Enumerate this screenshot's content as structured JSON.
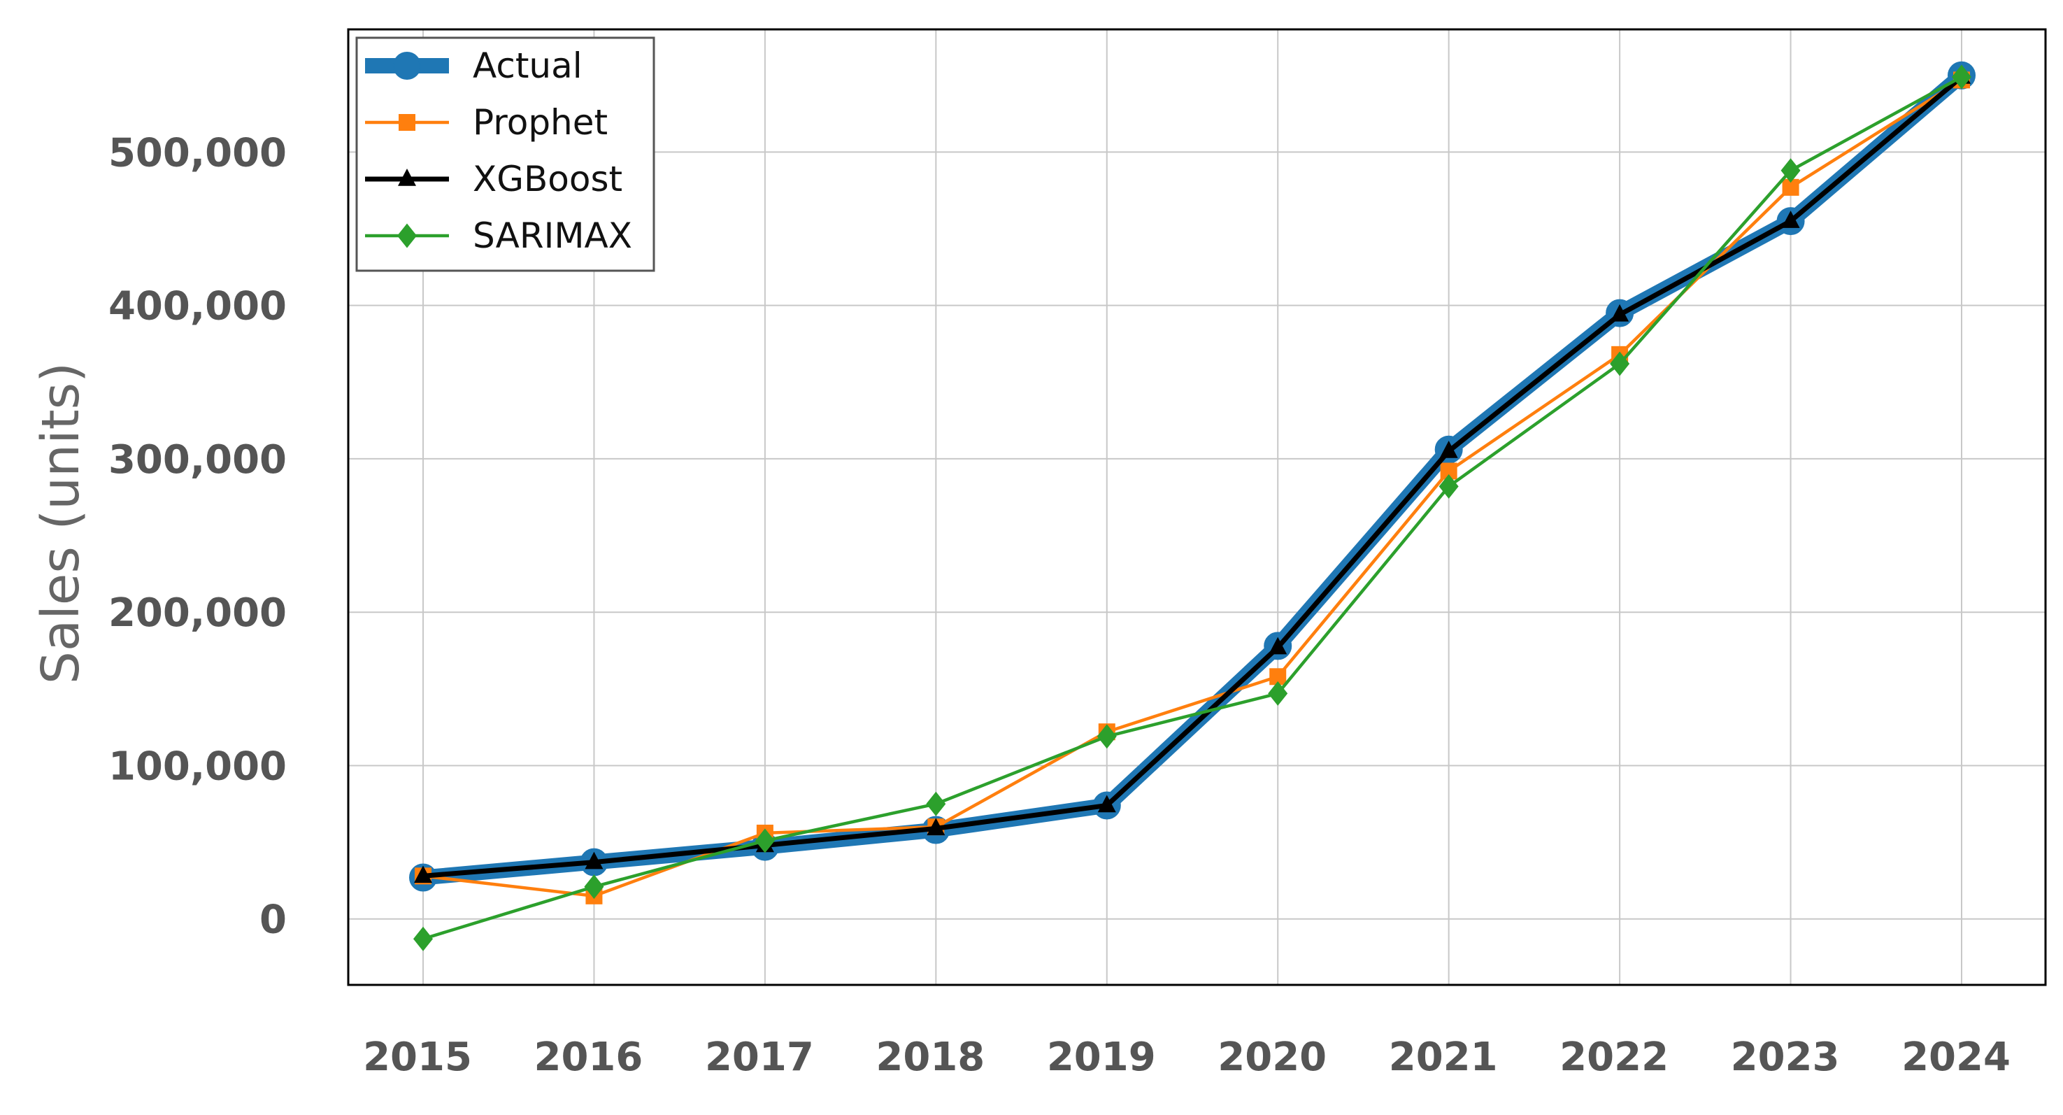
{
  "chart_data": {
    "type": "line",
    "title": "",
    "xlabel": "",
    "ylabel": "Sales (units)",
    "x": [
      "2015",
      "2016",
      "2017",
      "2018",
      "2019",
      "2020",
      "2021",
      "2022",
      "2023",
      "2024"
    ],
    "y_ticks": [
      0,
      100000,
      200000,
      300000,
      400000,
      500000
    ],
    "y_tick_labels": [
      "0",
      "100,000",
      "200,000",
      "300,000",
      "400,000",
      "500,000"
    ],
    "ylim": [
      -43000,
      580000
    ],
    "grid": true,
    "legend": "top-left",
    "series": [
      {
        "name": "Actual",
        "color": "#1f77b4",
        "marker": "circle",
        "x": [
          2015.0,
          2016.0,
          2017.0,
          2018.0,
          2019.0,
          2020.0,
          2021.0,
          2022.0,
          2023.0,
          2024.0
        ],
        "values": [
          27000,
          37000,
          47000,
          58000,
          74000,
          178000,
          306000,
          395000,
          455000,
          550000
        ]
      },
      {
        "name": "Prophet",
        "color": "#ff7f0e",
        "marker": "square",
        "x": [
          2015.0,
          2016.0,
          2017.0,
          2018.0,
          2019.0,
          2020.0,
          2021.0,
          2022.0,
          2023.0,
          2024.0
        ],
        "values": [
          28000,
          15000,
          56000,
          60000,
          122000,
          158000,
          292000,
          368000,
          477000,
          547000
        ]
      },
      {
        "name": "XGBoost",
        "color": "#000000",
        "marker": "triangle",
        "x": [
          2015.0,
          2016.0,
          2017.0,
          2018.0,
          2019.0,
          2020.0,
          2021.0,
          2022.0,
          2023.0,
          2024.0
        ],
        "values": [
          28000,
          37000,
          48000,
          59000,
          74000,
          177000,
          305000,
          394000,
          455000,
          549000
        ]
      },
      {
        "name": "SARIMAX",
        "color": "#2ca02c",
        "marker": "diamond",
        "x": [
          2015.0,
          2016.0,
          2017.0,
          2018.0,
          2019.0,
          2020.0,
          2021.0,
          2022.0,
          2023.0,
          2024.0
        ],
        "values": [
          -13000,
          21000,
          51000,
          75000,
          119000,
          147000,
          282000,
          362000,
          488000,
          549000
        ]
      }
    ]
  }
}
